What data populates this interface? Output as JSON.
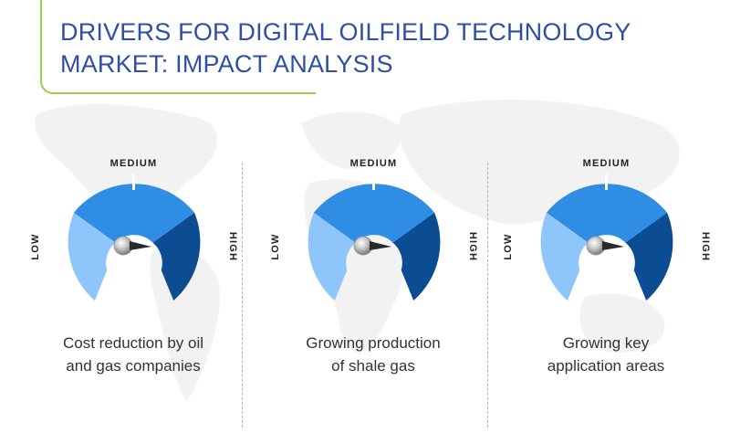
{
  "title": {
    "line1": "DRIVERS FOR DIGITAL OILFIELD TECHNOLOGY",
    "line2": "MARKET: IMPACT ANALYSIS"
  },
  "labels": {
    "low": "LOW",
    "medium": "MEDIUM",
    "high": "HIGH"
  },
  "colors": {
    "low": "#8ec5fb",
    "medium": "#2f8de4",
    "high": "#0c4c92",
    "title": "#2f4fa5",
    "accent": "#9bcf53"
  },
  "drivers": [
    {
      "caption_line1": "Cost reduction by oil",
      "caption_line2": "and gas companies",
      "impact": "high"
    },
    {
      "caption_line1": "Growing production",
      "caption_line2": "of shale gas",
      "impact": "high"
    },
    {
      "caption_line1": "Growing key",
      "caption_line2": "application areas",
      "impact": "high"
    }
  ]
}
